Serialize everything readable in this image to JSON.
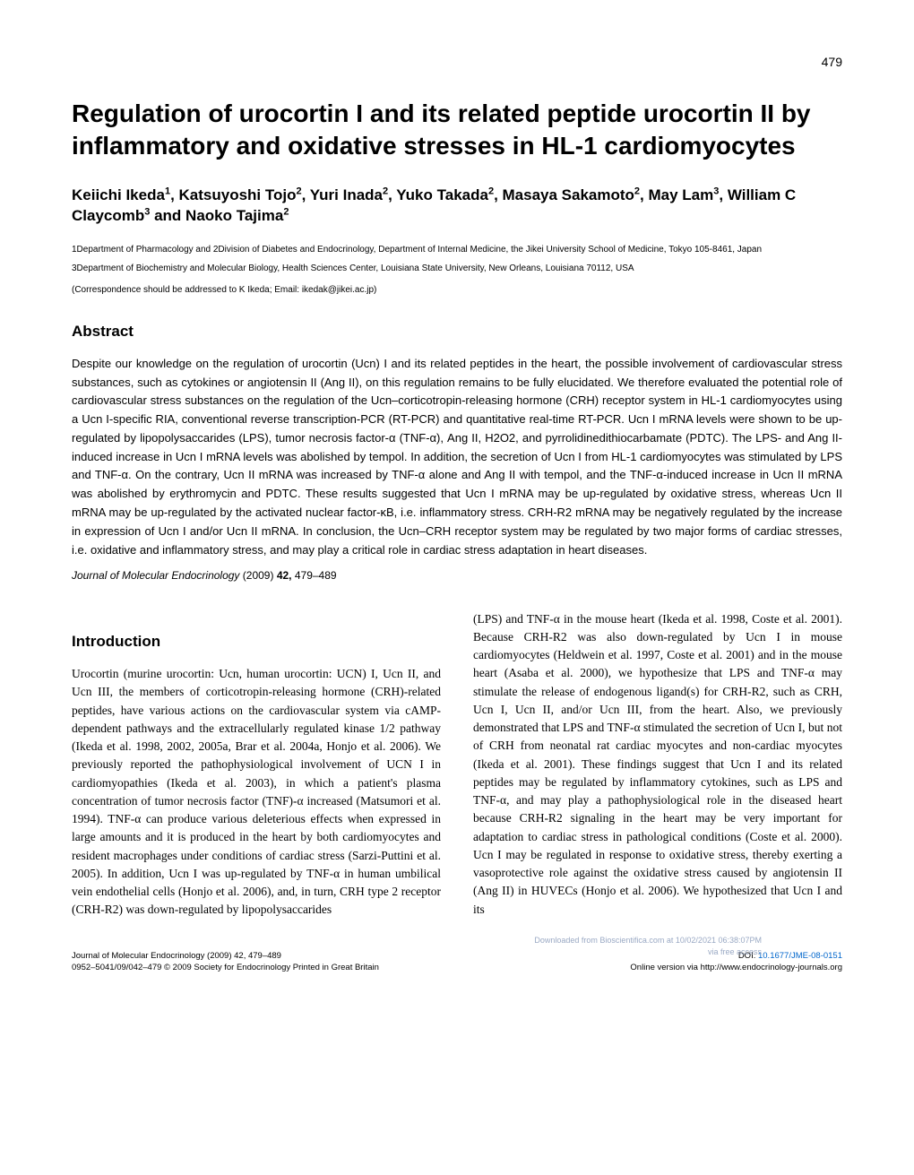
{
  "page_number": "479",
  "title": "Regulation of urocortin I and its related peptide urocortin II by inflammatory and oxidative stresses in HL-1 cardiomyocytes",
  "authors_html": "Keiichi Ikeda<sup>1</sup>, Katsuyoshi Tojo<sup>2</sup>, Yuri Inada<sup>2</sup>, Yuko Takada<sup>2</sup>, Masaya Sakamoto<sup>2</sup>, May Lam<sup>3</sup>, William C Claycomb<sup>3</sup> and Naoko Tajima<sup>2</sup>",
  "affiliations": [
    "1Department of Pharmacology and 2Division of Diabetes and Endocrinology, Department of Internal Medicine, the Jikei University School of Medicine, Tokyo 105-8461, Japan",
    "3Department of Biochemistry and Molecular Biology, Health Sciences Center, Louisiana State University, New Orleans, Louisiana 70112, USA"
  ],
  "correspondence": "(Correspondence should be addressed to K Ikeda; Email: ikedak@jikei.ac.jp)",
  "abstract_heading": "Abstract",
  "abstract": "Despite our knowledge on the regulation of urocortin (Ucn) I and its related peptides in the heart, the possible involvement of cardiovascular stress substances, such as cytokines or angiotensin II (Ang II), on this regulation remains to be fully elucidated. We therefore evaluated the potential role of cardiovascular stress substances on the regulation of the Ucn–corticotropin-releasing hormone (CRH) receptor system in HL-1 cardiomyocytes using a Ucn I-specific RIA, conventional reverse transcription-PCR (RT-PCR) and quantitative real-time RT-PCR. Ucn I mRNA levels were shown to be up-regulated by lipopolysaccarides (LPS), tumor necrosis factor-α (TNF-α), Ang II, H2O2, and pyrrolidinedithiocarbamate (PDTC). The LPS- and Ang II-induced increase in Ucn I mRNA levels was abolished by tempol. In addition, the secretion of Ucn I from HL-1 cardiomyocytes was stimulated by LPS and TNF-α. On the contrary, Ucn II mRNA was increased by TNF-α alone and Ang II with tempol, and the TNF-α-induced increase in Ucn II mRNA was abolished by erythromycin and PDTC. These results suggested that Ucn I mRNA may be up-regulated by oxidative stress, whereas Ucn II mRNA may be up-regulated by the activated nuclear factor-κB, i.e. inflammatory stress. CRH-R2 mRNA may be negatively regulated by the increase in expression of Ucn I and/or Ucn II mRNA. In conclusion, the Ucn–CRH receptor system may be regulated by two major forms of cardiac stresses, i.e. oxidative and inflammatory stress, and may play a critical role in cardiac stress adaptation in heart diseases.",
  "journal_citation": {
    "journal": "Journal of Molecular Endocrinology",
    "year": "(2009)",
    "volume": "42,",
    "pages": "479–489"
  },
  "intro_heading": "Introduction",
  "intro_left": "Urocortin (murine urocortin: Ucn, human urocortin: UCN) I, Ucn II, and Ucn III, the members of corticotropin-releasing hormone (CRH)-related peptides, have various actions on the cardiovascular system via cAMP-dependent pathways and the extracellularly regulated kinase 1/2 pathway (Ikeda et al. 1998, 2002, 2005a, Brar et al. 2004a, Honjo et al. 2006). We previously reported the pathophysiological involvement of UCN I in cardiomyopathies (Ikeda et al. 2003), in which a patient's plasma concentration of tumor necrosis factor (TNF)-α increased (Matsumori et al. 1994). TNF-α can produce various deleterious effects when expressed in large amounts and it is produced in the heart by both cardiomyocytes and resident macrophages under conditions of cardiac stress (Sarzi-Puttini et al. 2005). In addition, Ucn I was up-regulated by TNF-α in human umbilical vein endothelial cells (Honjo et al. 2006), and, in turn, CRH type 2 receptor (CRH-R2) was down-regulated by lipopolysaccarides",
  "intro_right": "(LPS) and TNF-α in the mouse heart (Ikeda et al. 1998, Coste et al. 2001). Because CRH-R2 was also down-regulated by Ucn I in mouse cardiomyocytes (Heldwein et al. 1997, Coste et al. 2001) and in the mouse heart (Asaba et al. 2000), we hypothesize that LPS and TNF-α may stimulate the release of endogenous ligand(s) for CRH-R2, such as CRH, Ucn I, Ucn II, and/or Ucn III, from the heart. Also, we previously demonstrated that LPS and TNF-α stimulated the secretion of Ucn I, but not of CRH from neonatal rat cardiac myocytes and non-cardiac myocytes (Ikeda et al. 2001). These findings suggest that Ucn I and its related peptides may be regulated by inflammatory cytokines, such as LPS and TNF-α, and may play a pathophysiological role in the diseased heart because CRH-R2 signaling in the heart may be very important for adaptation to cardiac stress in pathological conditions (Coste et al. 2000). Ucn I may be regulated in response to oxidative stress, thereby exerting a vasoprotective role against the oxidative stress caused by angiotensin II (Ang II) in HUVECs (Honjo et al. 2006). We hypothesized that Ucn I and its",
  "footer": {
    "left_line1": "Journal of Molecular Endocrinology (2009) 42, 479–489",
    "left_line2": "0952–5041/09/042–479   © 2009 Society for Endocrinology   Printed in Great Britain",
    "right_line1": "DOI: 10.1677/JME-08-0151",
    "right_line2": "Online version via http://www.endocrinology-journals.org"
  },
  "watermark": {
    "line1": "Downloaded from Bioscientifica.com at 10/02/2021 06:38:07PM",
    "line2": "via free access"
  }
}
